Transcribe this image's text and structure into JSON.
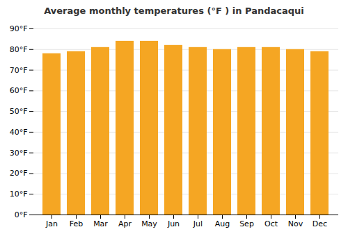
{
  "chart_data": {
    "type": "bar",
    "title": "Average monthly temperatures (°F ) in Pandacaqui",
    "categories": [
      "Jan",
      "Feb",
      "Mar",
      "Apr",
      "May",
      "Jun",
      "Jul",
      "Aug",
      "Sep",
      "Oct",
      "Nov",
      "Dec"
    ],
    "values": [
      78,
      79,
      81,
      84,
      84,
      82,
      81,
      80,
      81,
      81,
      80,
      79
    ],
    "color": "#F5A623",
    "ylim": [
      0,
      90
    ],
    "yticks": [
      {
        "value": 0,
        "label": "0°F"
      },
      {
        "value": 10,
        "label": "10°F"
      },
      {
        "value": 20,
        "label": "20°F"
      },
      {
        "value": 30,
        "label": "30°F"
      },
      {
        "value": 40,
        "label": "40°F"
      },
      {
        "value": 50,
        "label": "50°F"
      },
      {
        "value": 60,
        "label": "60°F"
      },
      {
        "value": 70,
        "label": "70°F"
      },
      {
        "value": 80,
        "label": "80°F"
      },
      {
        "value": 90,
        "label": "90°F"
      }
    ],
    "grid": true
  }
}
